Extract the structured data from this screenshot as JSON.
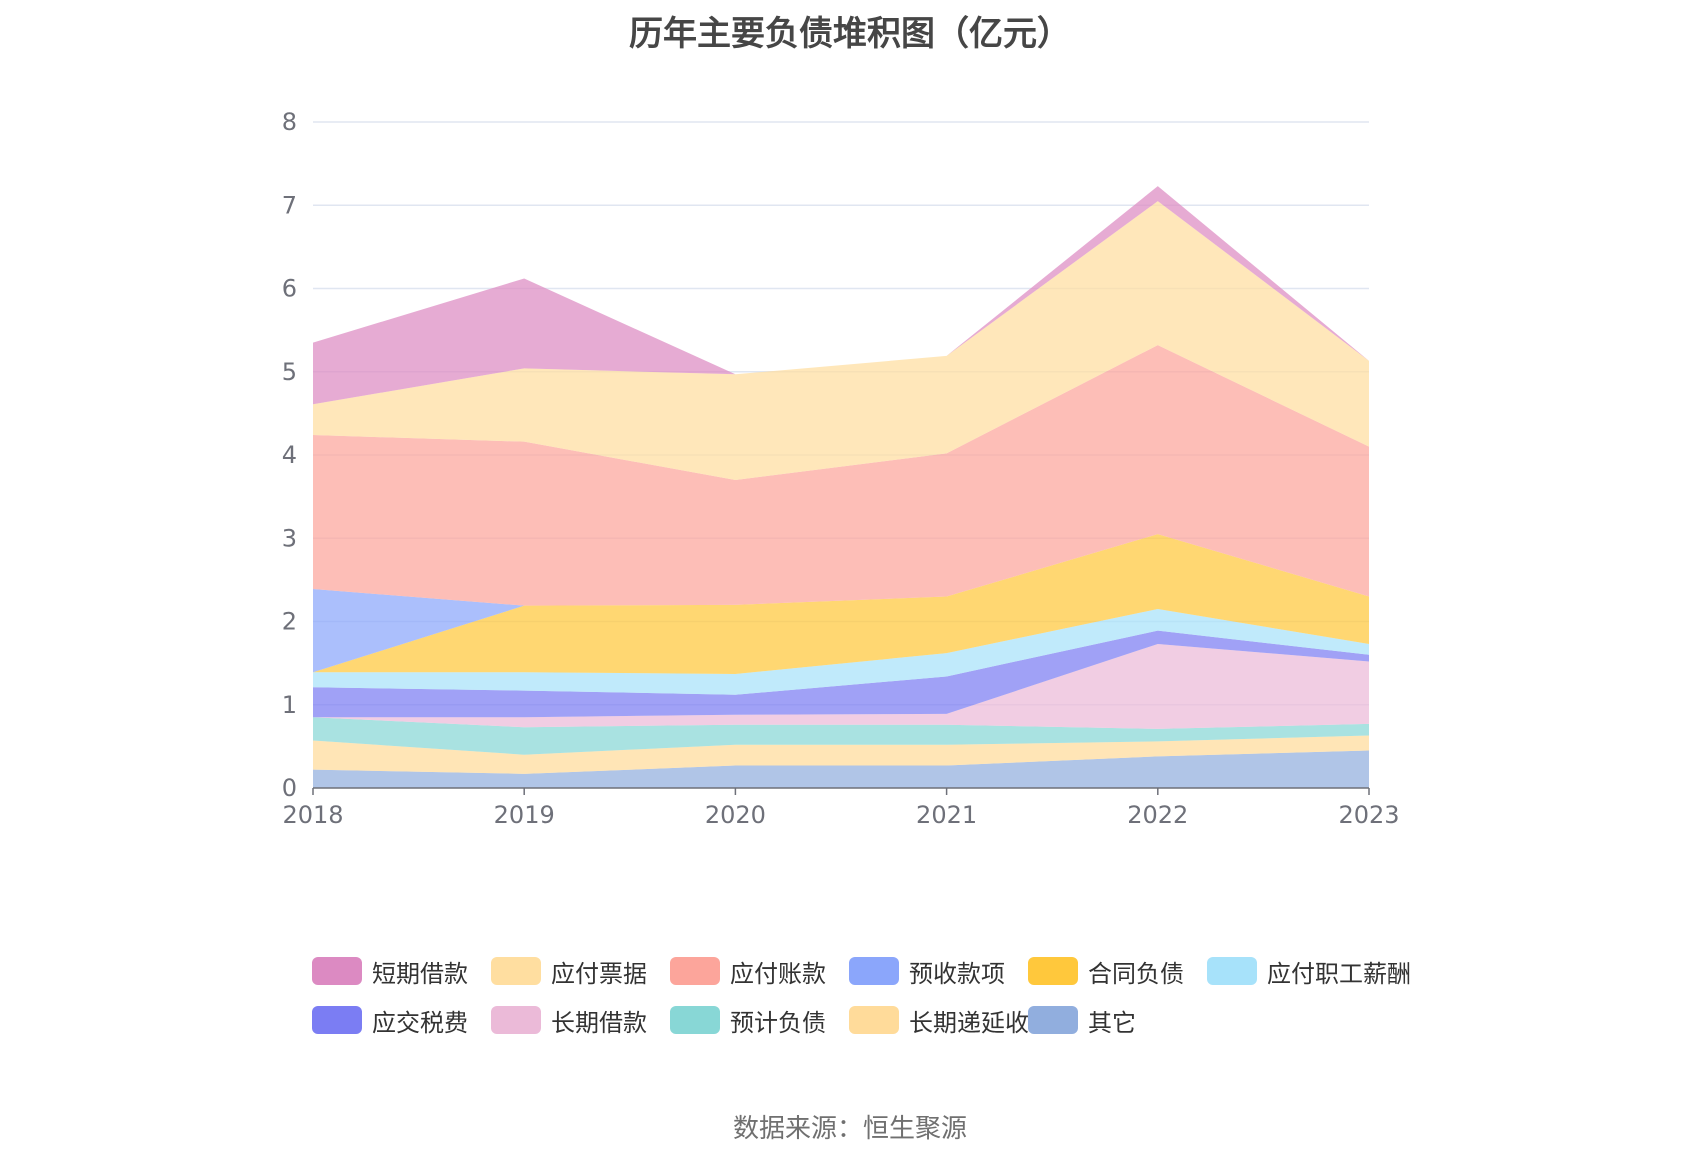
{
  "chart_data": {
    "type": "area",
    "stacked": true,
    "title": "历年主要负债堆积图（亿元）",
    "x": [
      "2018",
      "2019",
      "2020",
      "2021",
      "2022",
      "2023"
    ],
    "ylim": [
      0,
      8
    ],
    "yticks": [
      "0",
      "1",
      "2",
      "3",
      "4",
      "5",
      "6",
      "7",
      "8"
    ],
    "grid": true,
    "legend_position": "bottom",
    "series": [
      {
        "name": "其它",
        "color": "#91aede",
        "values": [
          0.22,
          0.17,
          0.27,
          0.27,
          0.38,
          0.45
        ]
      },
      {
        "name": "长期递延收益",
        "color": "#ffdb9a",
        "values": [
          0.35,
          0.23,
          0.25,
          0.25,
          0.18,
          0.18
        ]
      },
      {
        "name": "预计负债",
        "color": "#88d7d6",
        "values": [
          0.28,
          0.33,
          0.24,
          0.24,
          0.15,
          0.14
        ]
      },
      {
        "name": "长期借款",
        "color": "#ebbad8",
        "values": [
          0.0,
          0.12,
          0.12,
          0.13,
          1.02,
          0.75
        ]
      },
      {
        "name": "应交税费",
        "color": "#7b7df3",
        "values": [
          0.36,
          0.32,
          0.24,
          0.45,
          0.16,
          0.08
        ]
      },
      {
        "name": "应付职工薪酬",
        "color": "#a7e2fa",
        "values": [
          0.18,
          0.22,
          0.25,
          0.28,
          0.26,
          0.13
        ]
      },
      {
        "name": "合同负债",
        "color": "#ffc83c",
        "values": [
          0.0,
          0.8,
          0.83,
          0.68,
          0.9,
          0.57
        ]
      },
      {
        "name": "预收款项",
        "color": "#8ba6fb",
        "values": [
          1.0,
          0.0,
          0.0,
          0.0,
          0.0,
          0.0
        ]
      },
      {
        "name": "应付账款",
        "color": "#fca59b",
        "values": [
          1.85,
          1.97,
          1.5,
          1.72,
          2.27,
          1.8
        ]
      },
      {
        "name": "应付票据",
        "color": "#ffdea0",
        "values": [
          0.37,
          0.88,
          1.27,
          1.17,
          1.73,
          1.03
        ]
      },
      {
        "name": "短期借款",
        "color": "#dc8ac2",
        "values": [
          0.74,
          1.08,
          0.0,
          0.0,
          0.18,
          0.0
        ]
      }
    ]
  },
  "legend_order": [
    "短期借款",
    "应付票据",
    "应付账款",
    "预收款项",
    "合同负债",
    "应付职工薪酬",
    "应交税费",
    "长期借款",
    "预计负债",
    "长期递延收益",
    "其它"
  ],
  "source": "数据来源：恒生聚源"
}
